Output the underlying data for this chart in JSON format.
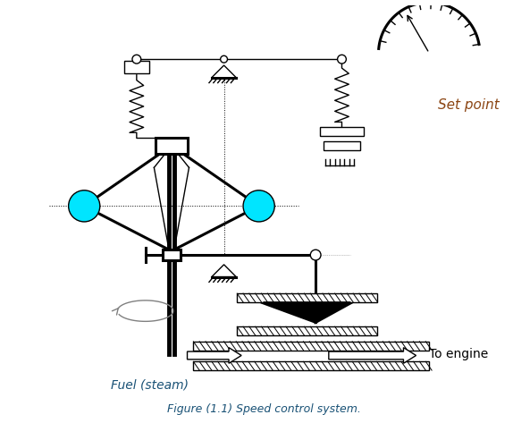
{
  "title": "Figure (1.1) Speed control system.",
  "title_color": "#1a5276",
  "set_point_text": "Set point",
  "fuel_text": "Fuel (steam)",
  "engine_text": "To engine",
  "bg_color": "#ffffff",
  "line_color": "#000000",
  "ball_color": "#00e5ff",
  "fuel_color": "#1a5276",
  "engine_color": "#000000"
}
